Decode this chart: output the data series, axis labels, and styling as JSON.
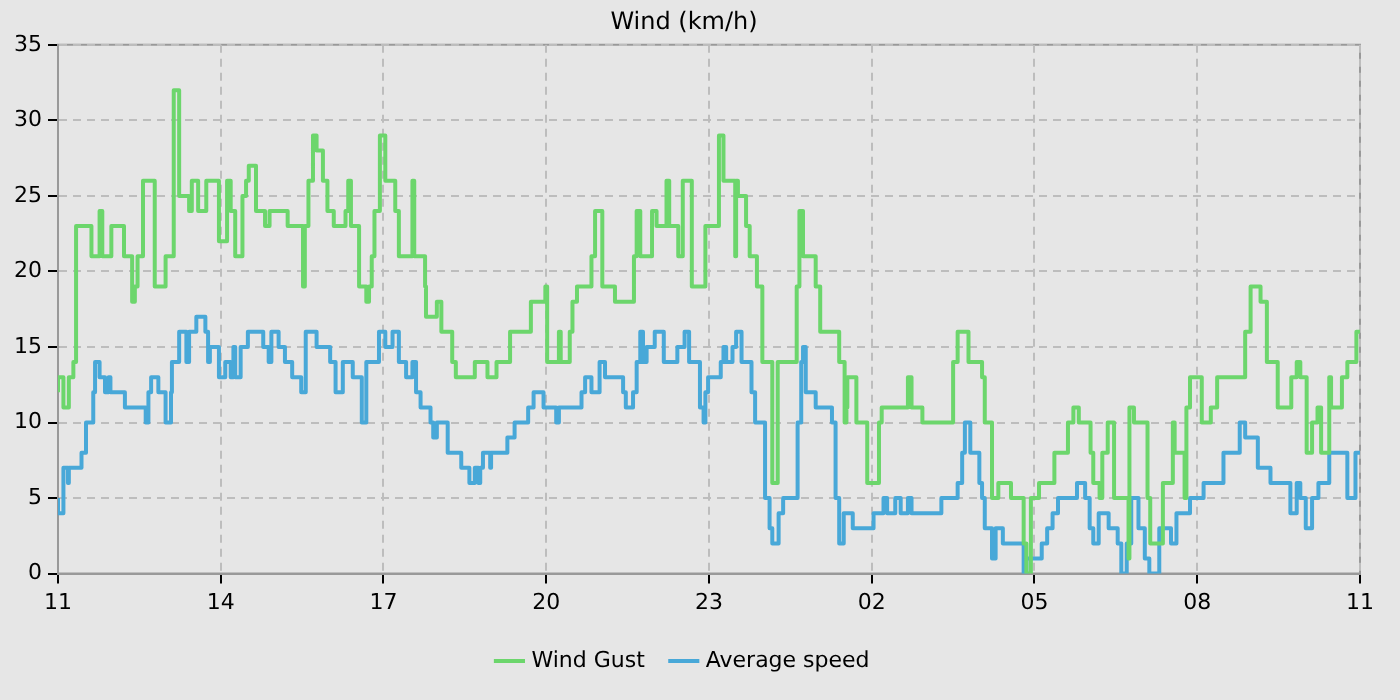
{
  "chart_data": {
    "type": "step",
    "title": "Wind (km/h)",
    "xlim": [
      "--01-01T11:00",
      "--01-02T11:00"
    ],
    "xticks": [
      {
        "value": "--01-01T11:00",
        "label": "11"
      },
      {
        "value": "--01-01T14:00",
        "label": "14"
      },
      {
        "value": "--01-01T17:00",
        "label": "17"
      },
      {
        "value": "--01-01T20:00",
        "label": "20"
      },
      {
        "value": "--01-01T23:00",
        "label": "23"
      },
      {
        "value": "--01-02T02:00",
        "label": "02"
      },
      {
        "value": "--01-02T05:00",
        "label": "05"
      },
      {
        "value": "--01-02T08:00",
        "label": "08"
      },
      {
        "value": "--01-02T11:00",
        "label": "11"
      }
    ],
    "ylim": [
      0,
      35
    ],
    "yticks": [
      0,
      5,
      10,
      15,
      20,
      25,
      30,
      35
    ],
    "grid": true,
    "legend": "bottom",
    "marker": "none",
    "line_style": "solid",
    "series": [
      {
        "name": "Wind Gust",
        "color": "#6cd66c",
        "x": [
          "--01-01T11:00",
          "--01-01T11:06",
          "--01-01T11:12",
          "--01-01T11:17",
          "--01-01T11:20",
          "--01-01T11:37",
          "--01-01T11:46",
          "--01-01T11:49",
          "--01-01T11:59",
          "--01-01T12:13",
          "--01-01T12:22",
          "--01-01T12:25",
          "--01-01T12:28",
          "--01-01T12:34",
          "--01-01T12:47",
          "--01-01T12:59",
          "--01-01T13:08",
          "--01-01T13:14",
          "--01-01T13:25",
          "--01-01T13:28",
          "--01-01T13:35",
          "--01-01T13:44",
          "--01-01T13:58",
          "--01-01T14:07",
          "--01-01T14:11",
          "--01-01T14:16",
          "--01-01T14:24",
          "--01-01T14:28",
          "--01-01T14:31",
          "--01-01T14:39",
          "--01-01T14:49",
          "--01-01T14:54",
          "--01-01T15:14",
          "--01-01T15:31",
          "--01-01T15:33",
          "--01-01T15:37",
          "--01-01T15:42",
          "--01-01T15:46",
          "--01-01T15:53",
          "--01-01T15:58",
          "--01-01T16:05",
          "--01-01T16:18",
          "--01-01T16:21",
          "--01-01T16:24",
          "--01-01T16:33",
          "--01-01T16:41",
          "--01-01T16:44",
          "--01-01T16:47",
          "--01-01T16:50",
          "--01-01T16:56",
          "--01-01T17:02",
          "--01-01T17:13",
          "--01-01T17:17",
          "--01-01T17:32",
          "--01-01T17:34",
          "--01-01T17:46",
          "--01-01T17:47",
          "--01-01T17:59",
          "--01-01T18:04",
          "--01-01T18:16",
          "--01-01T18:20",
          "--01-01T18:32",
          "--01-01T18:41",
          "--01-01T18:55",
          "--01-01T19:05",
          "--01-01T19:20",
          "--01-01T19:43",
          "--01-01T19:59",
          "--01-01T20:01",
          "--01-01T20:14",
          "--01-01T20:16",
          "--01-01T20:26",
          "--01-01T20:29",
          "--01-01T20:34",
          "--01-01T20:50",
          "--01-01T20:54",
          "--01-01T21:02",
          "--01-01T21:16",
          "--01-01T21:37",
          "--01-01T21:40",
          "--01-01T21:44",
          "--01-01T21:57",
          "--01-01T22:02",
          "--01-01T22:13",
          "--01-01T22:16",
          "--01-01T22:26",
          "--01-01T22:31",
          "--01-01T22:41",
          "--01-01T22:56",
          "--01-01T23:11",
          "--01-01T23:16",
          "--01-01T23:29",
          "--01-01T23:30",
          "--01-01T23:32",
          "--01-01T23:41",
          "--01-01T23:45",
          "--01-01T23:53",
          "--01-01T23:59",
          "--01-02T00:10",
          "--01-02T00:16",
          "--01-02T00:37",
          "--01-02T00:40",
          "--01-02T00:44",
          "--01-02T00:58",
          "--01-02T01:03",
          "--01-02T01:24",
          "--01-02T01:30",
          "--01-02T01:32",
          "--01-02T01:33",
          "--01-02T01:43",
          "--01-02T01:55",
          "--01-02T02:08",
          "--01-02T02:11",
          "--01-02T02:21",
          "--01-02T02:40",
          "--01-02T02:44",
          "--01-02T02:56",
          "--01-02T03:30",
          "--01-02T03:35",
          "--01-02T03:47",
          "--01-02T04:02",
          "--01-02T04:05",
          "--01-02T04:13",
          "--01-02T04:20",
          "--01-02T04:34",
          "--01-02T04:48",
          "--01-02T04:51",
          "--01-02T04:56",
          "--01-02T05:05",
          "--01-02T05:22",
          "--01-02T05:37",
          "--01-02T05:43",
          "--01-02T05:49",
          "--01-02T06:02",
          "--01-02T06:05",
          "--01-02T06:12",
          "--01-02T06:15",
          "--01-02T06:21",
          "--01-02T06:28",
          "--01-02T06:44",
          "--01-02T06:45",
          "--01-02T06:50",
          "--01-02T07:05",
          "--01-02T07:08",
          "--01-02T07:22",
          "--01-02T07:33",
          "--01-02T07:35",
          "--01-02T07:46",
          "--01-02T07:48",
          "--01-02T07:52",
          "--01-02T08:05",
          "--01-02T08:15",
          "--01-02T08:22",
          "--01-02T08:53",
          "--01-02T08:59",
          "--01-02T09:10",
          "--01-02T09:17",
          "--01-02T09:29",
          "--01-02T09:44",
          "--01-02T09:50",
          "--01-02T09:54",
          "--01-02T10:01",
          "--01-02T10:07",
          "--01-02T10:13",
          "--01-02T10:17",
          "--01-02T10:26",
          "--01-02T10:28",
          "--01-02T10:40",
          "--01-02T10:46",
          "--01-02T10:56",
          "--01-02T11:00"
        ],
        "values": [
          12,
          13,
          11,
          13,
          14,
          23,
          21,
          24,
          21,
          23,
          21,
          18,
          19,
          21,
          26,
          19,
          21,
          32,
          25,
          24,
          26,
          24,
          26,
          22,
          26,
          24,
          21,
          25,
          26,
          27,
          24,
          23,
          24,
          23,
          19,
          23,
          26,
          29,
          28,
          26,
          24,
          23,
          24,
          26,
          23,
          19,
          18,
          19,
          21,
          24,
          29,
          26,
          24,
          21,
          26,
          21,
          19,
          17,
          18,
          16,
          14,
          13,
          13,
          14,
          13,
          14,
          16,
          18,
          19,
          14,
          16,
          14,
          16,
          18,
          19,
          21,
          24,
          19,
          18,
          21,
          24,
          21,
          24,
          23,
          26,
          23,
          21,
          26,
          19,
          23,
          29,
          26,
          21,
          26,
          25,
          23,
          21,
          19,
          14,
          6,
          14,
          19,
          24,
          21,
          19,
          16,
          14,
          10,
          11,
          13,
          10,
          6,
          10,
          11,
          11,
          13,
          11,
          10,
          14,
          16,
          14,
          13,
          10,
          5,
          6,
          5,
          2,
          0,
          5,
          6,
          8,
          10,
          11,
          10,
          8,
          6,
          5,
          8,
          10,
          5,
          1,
          11,
          10,
          5,
          2,
          6,
          10,
          8,
          5,
          11,
          13,
          10,
          11,
          13,
          16,
          19,
          18,
          14,
          11,
          13,
          14,
          13,
          8,
          10,
          11,
          8,
          13,
          11,
          13,
          14,
          16
        ]
      },
      {
        "name": "Average speed",
        "color": "#48a8d8",
        "x": [
          "--01-01T11:00",
          "--01-01T11:06",
          "--01-01T11:11",
          "--01-01T11:12",
          "--01-01T11:26",
          "--01-01T11:31",
          "--01-01T11:39",
          "--01-01T11:41",
          "--01-01T11:46",
          "--01-01T11:52",
          "--01-01T11:56",
          "--01-01T11:58",
          "--01-01T12:14",
          "--01-01T12:37",
          "--01-01T12:40",
          "--01-01T12:43",
          "--01-01T12:51",
          "--01-01T12:59",
          "--01-01T13:05",
          "--01-01T13:06",
          "--01-01T13:14",
          "--01-01T13:22",
          "--01-01T13:25",
          "--01-01T13:33",
          "--01-01T13:43",
          "--01-01T13:46",
          "--01-01T13:48",
          "--01-01T13:58",
          "--01-01T14:05",
          "--01-01T14:11",
          "--01-01T14:14",
          "--01-01T14:16",
          "--01-01T14:22",
          "--01-01T14:30",
          "--01-01T14:47",
          "--01-01T14:53",
          "--01-01T14:56",
          "--01-01T15:04",
          "--01-01T15:11",
          "--01-01T15:19",
          "--01-01T15:29",
          "--01-01T15:34",
          "--01-01T15:46",
          "--01-01T16:01",
          "--01-01T16:07",
          "--01-01T16:15",
          "--01-01T16:26",
          "--01-01T16:36",
          "--01-01T16:41",
          "--01-01T16:55",
          "--01-01T17:02",
          "--01-01T17:10",
          "--01-01T17:17",
          "--01-01T17:25",
          "--01-01T17:32",
          "--01-01T17:36",
          "--01-01T17:41",
          "--01-01T17:52",
          "--01-01T17:55",
          "--01-01T17:59",
          "--01-01T18:11",
          "--01-01T18:26",
          "--01-01T18:35",
          "--01-01T18:41",
          "--01-01T18:45",
          "--01-01T18:47",
          "--01-01T18:50",
          "--01-01T18:58",
          "--01-01T18:59",
          "--01-01T19:17",
          "--01-01T19:25",
          "--01-01T19:40",
          "--01-01T19:46",
          "--01-01T19:57",
          "--01-01T20:11",
          "--01-01T20:14",
          "--01-01T20:39",
          "--01-01T20:43",
          "--01-01T20:50",
          "--01-01T20:59",
          "--01-01T21:05",
          "--01-01T21:25",
          "--01-01T21:28",
          "--01-01T21:36",
          "--01-01T21:40",
          "--01-01T21:44",
          "--01-01T21:47",
          "--01-01T21:51",
          "--01-01T22:00",
          "--01-01T22:10",
          "--01-01T22:25",
          "--01-01T22:33",
          "--01-01T22:38",
          "--01-01T22:50",
          "--01-01T22:54",
          "--01-01T22:56",
          "--01-01T22:59",
          "--01-01T23:13",
          "--01-01T23:16",
          "--01-01T23:19",
          "--01-01T23:26",
          "--01-01T23:30",
          "--01-01T23:36",
          "--01-01T23:47",
          "--01-01T23:51",
          "--01-02T00:02",
          "--01-02T00:07",
          "--01-02T00:10",
          "--01-02T00:17",
          "--01-02T00:22",
          "--01-02T00:38",
          "--01-02T00:42",
          "--01-02T00:44",
          "--01-02T00:47",
          "--01-02T00:58",
          "--01-02T01:16",
          "--01-02T01:20",
          "--01-02T01:24",
          "--01-02T01:29",
          "--01-02T01:39",
          "--01-02T02:02",
          "--01-02T02:13",
          "--01-02T02:17",
          "--01-02T02:26",
          "--01-02T02:32",
          "--01-02T02:40",
          "--01-02T02:44",
          "--01-02T03:17",
          "--01-02T03:35",
          "--01-02T03:40",
          "--01-02T03:43",
          "--01-02T03:49",
          "--01-02T03:59",
          "--01-02T04:02",
          "--01-02T04:05",
          "--01-02T04:13",
          "--01-02T04:17",
          "--01-02T04:25",
          "--01-02T04:48",
          "--01-02T04:51",
          "--01-02T05:08",
          "--01-02T05:14",
          "--01-02T05:20",
          "--01-02T05:26",
          "--01-02T05:47",
          "--01-02T05:56",
          "--01-02T06:01",
          "--01-02T06:05",
          "--01-02T06:11",
          "--01-02T06:22",
          "--01-02T06:32",
          "--01-02T06:36",
          "--01-02T06:42",
          "--01-02T06:47",
          "--01-02T06:55",
          "--01-02T07:02",
          "--01-02T07:07",
          "--01-02T07:18",
          "--01-02T07:31",
          "--01-02T07:37",
          "--01-02T07:52",
          "--01-02T08:07",
          "--01-02T08:29",
          "--01-02T08:47",
          "--01-02T08:53",
          "--01-02T09:07",
          "--01-02T09:21",
          "--01-02T09:43",
          "--01-02T09:50",
          "--01-02T09:54",
          "--01-02T10:00",
          "--01-02T10:07",
          "--01-02T10:14",
          "--01-02T10:26",
          "--01-02T10:46",
          "--01-02T10:55",
          "--01-02T11:00"
        ],
        "values": [
          5,
          4,
          7,
          6,
          7,
          8,
          10,
          12,
          14,
          13,
          12,
          13,
          12,
          11,
          10,
          12,
          13,
          12,
          10,
          12,
          14,
          16,
          14,
          16,
          17,
          16,
          14,
          15,
          13,
          14,
          13,
          15,
          13,
          15,
          16,
          15,
          14,
          16,
          15,
          14,
          13,
          12,
          16,
          15,
          14,
          12,
          14,
          13,
          10,
          14,
          16,
          15,
          16,
          14,
          13,
          14,
          12,
          11,
          10,
          9,
          10,
          8,
          7,
          6,
          7,
          6,
          7,
          8,
          7,
          8,
          9,
          10,
          11,
          12,
          11,
          10,
          11,
          12,
          13,
          12,
          14,
          13,
          12,
          11,
          12,
          14,
          16,
          14,
          15,
          16,
          14,
          15,
          16,
          14,
          11,
          10,
          12,
          13,
          14,
          15,
          14,
          15,
          16,
          14,
          12,
          10,
          5,
          3,
          2,
          4,
          5,
          10,
          14,
          15,
          12,
          11,
          10,
          5,
          2,
          4,
          3,
          4,
          5,
          4,
          5,
          4,
          5,
          4,
          5,
          6,
          8,
          10,
          8,
          6,
          5,
          3,
          1,
          3,
          2,
          0,
          1,
          2,
          3,
          4,
          5,
          6,
          5,
          3,
          2,
          4,
          3,
          2,
          0,
          2,
          5,
          3,
          1,
          0,
          3,
          2,
          4,
          5,
          6,
          8,
          10,
          9,
          7,
          6,
          4,
          6,
          5,
          3,
          5,
          6,
          8,
          5,
          8
        ]
      }
    ]
  }
}
